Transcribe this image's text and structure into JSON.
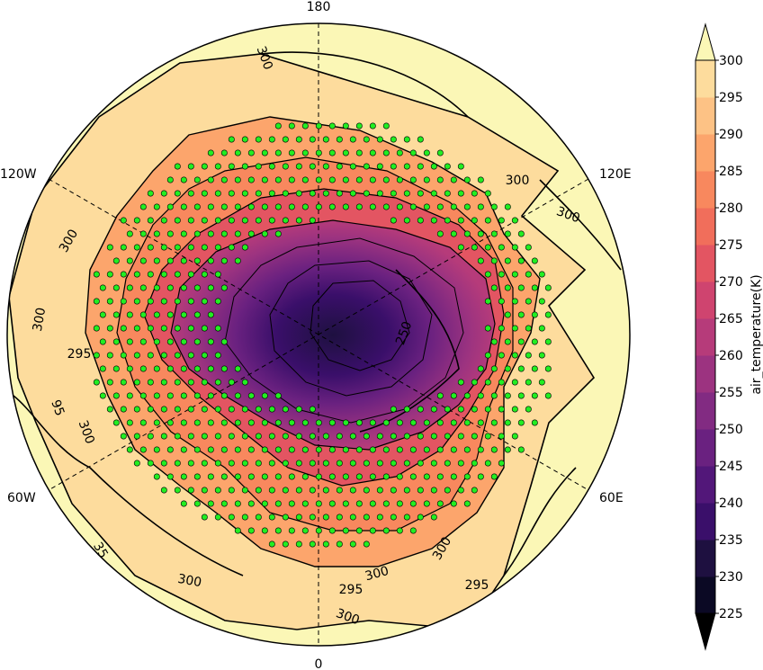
{
  "map": {
    "projection": "north-polar-stereographic",
    "longitude_labels": {
      "top": "180",
      "bottom": "0",
      "upper_left": "120W",
      "upper_right": "120E",
      "lower_left": "60W",
      "lower_right": "60E"
    },
    "contour_labels": [
      {
        "text": "300"
      },
      {
        "text": "300"
      },
      {
        "text": "300"
      },
      {
        "text": "300"
      },
      {
        "text": "300"
      },
      {
        "text": "295"
      },
      {
        "text": "95"
      },
      {
        "text": "300"
      },
      {
        "text": "300"
      },
      {
        "text": "300"
      },
      {
        "text": "295"
      },
      {
        "text": "300"
      },
      {
        "text": "300"
      },
      {
        "text": "295"
      },
      {
        "text": "250"
      },
      {
        "text": "35"
      }
    ],
    "stippling": "green significance dots over cold regions"
  },
  "colorbar": {
    "label": "air_temperature(K)",
    "extend": "both",
    "colormap": "magma",
    "ticks": [
      "225",
      "230",
      "235",
      "240",
      "245",
      "250",
      "255",
      "260",
      "265",
      "270",
      "275",
      "280",
      "285",
      "290",
      "295",
      "300"
    ],
    "colors": [
      "#0b0924",
      "#1e1040",
      "#3a0f6a",
      "#521779",
      "#6a2180",
      "#822b82",
      "#9c3380",
      "#b63b7a",
      "#cf446f",
      "#e35562",
      "#f16e5b",
      "#f8885e",
      "#fca56c",
      "#fdc285",
      "#fddc9d",
      "#fbf7b6"
    ],
    "under_color": "#000000",
    "over_color": "#fbf7b6"
  }
}
